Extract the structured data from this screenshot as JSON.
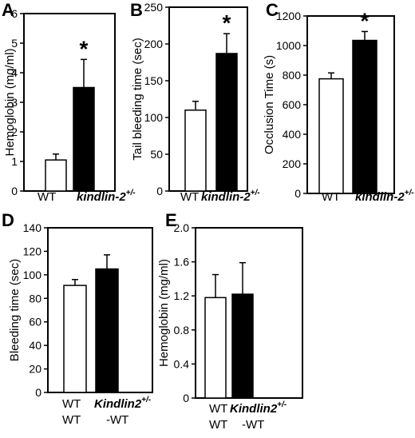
{
  "chart_data": [
    {
      "panel": "A",
      "type": "bar",
      "ylabel": "Hemoglobin (mg/ml)",
      "ylim": [
        0,
        6
      ],
      "yticks": [
        "0",
        "1",
        "2",
        "3",
        "4",
        "5",
        "6"
      ],
      "bars": [
        {
          "category": "WT",
          "value": 1.05,
          "error": 0.2,
          "fill": "#ffffff"
        },
        {
          "category": "kindlin-2+/-",
          "value": 3.5,
          "error": 0.95,
          "fill": "#000000",
          "significant": true
        }
      ],
      "category_labels": [
        {
          "text": "WT"
        },
        {
          "text": "kindlin-2",
          "sup": "+/-",
          "italic": true
        }
      ],
      "significance_mark": "*"
    },
    {
      "panel": "B",
      "type": "bar",
      "ylabel": "Tail bleeding time (sec)",
      "ylim": [
        0,
        250
      ],
      "yticks": [
        "0",
        "50",
        "100",
        "150",
        "200",
        "250"
      ],
      "bars": [
        {
          "category": "WT",
          "value": 110,
          "error": 12,
          "fill": "#ffffff"
        },
        {
          "category": "kindlin-2+/-",
          "value": 187,
          "error": 27,
          "fill": "#000000",
          "significant": true
        }
      ],
      "category_labels": [
        {
          "text": "WT"
        },
        {
          "text": "kindlin-2",
          "sup": "+/-",
          "italic": true
        }
      ],
      "significance_mark": "*"
    },
    {
      "panel": "C",
      "type": "bar",
      "ylabel": "Occlusion Time (s)",
      "ylim": [
        0,
        1200
      ],
      "yticks": [
        "0",
        "200",
        "400",
        "600",
        "800",
        "1000",
        "1200"
      ],
      "bars": [
        {
          "category": "WT",
          "value": 775,
          "error": 40,
          "fill": "#ffffff"
        },
        {
          "category": "kindlin-2+/-",
          "value": 1035,
          "error": 60,
          "fill": "#000000",
          "significant": true
        }
      ],
      "category_labels": [
        {
          "text": "WT"
        },
        {
          "text": "kindlin-2",
          "sup": "+/-",
          "italic": true
        }
      ],
      "significance_mark": "*"
    },
    {
      "panel": "D",
      "type": "bar",
      "ylabel": "Bleeding time (sec)",
      "ylim": [
        0,
        140
      ],
      "yticks": [
        "0",
        "20",
        "40",
        "60",
        "80",
        "100",
        "120",
        "140"
      ],
      "bars": [
        {
          "category": "WT-WT",
          "value": 91,
          "error": 5,
          "fill": "#ffffff"
        },
        {
          "category": "Kindlin2+/- -WT",
          "value": 105,
          "error": 12,
          "fill": "#000000"
        }
      ],
      "category_labels": [
        {
          "text": "WT",
          "line2": "WT"
        },
        {
          "text": "Kindlin2",
          "sup": "+/-",
          "italic": true,
          "line2": "-WT"
        }
      ]
    },
    {
      "panel": "E",
      "type": "bar",
      "ylabel": "Hemoglobin (mg/ml)",
      "ylim": [
        0,
        2.0
      ],
      "yticks": [
        "0",
        "0.4",
        "0.8",
        "1.2",
        "1.6",
        "2.0"
      ],
      "bars": [
        {
          "category": "WT-WT",
          "value": 1.18,
          "error": 0.27,
          "fill": "#ffffff"
        },
        {
          "category": "Kindlin2+/- -WT",
          "value": 1.22,
          "error": 0.37,
          "fill": "#000000"
        }
      ],
      "category_labels": [
        {
          "text": "WT",
          "line2": "WT"
        },
        {
          "text": "Kindlin2",
          "sup": "+/-",
          "italic": true,
          "line2": "-WT"
        }
      ]
    }
  ]
}
